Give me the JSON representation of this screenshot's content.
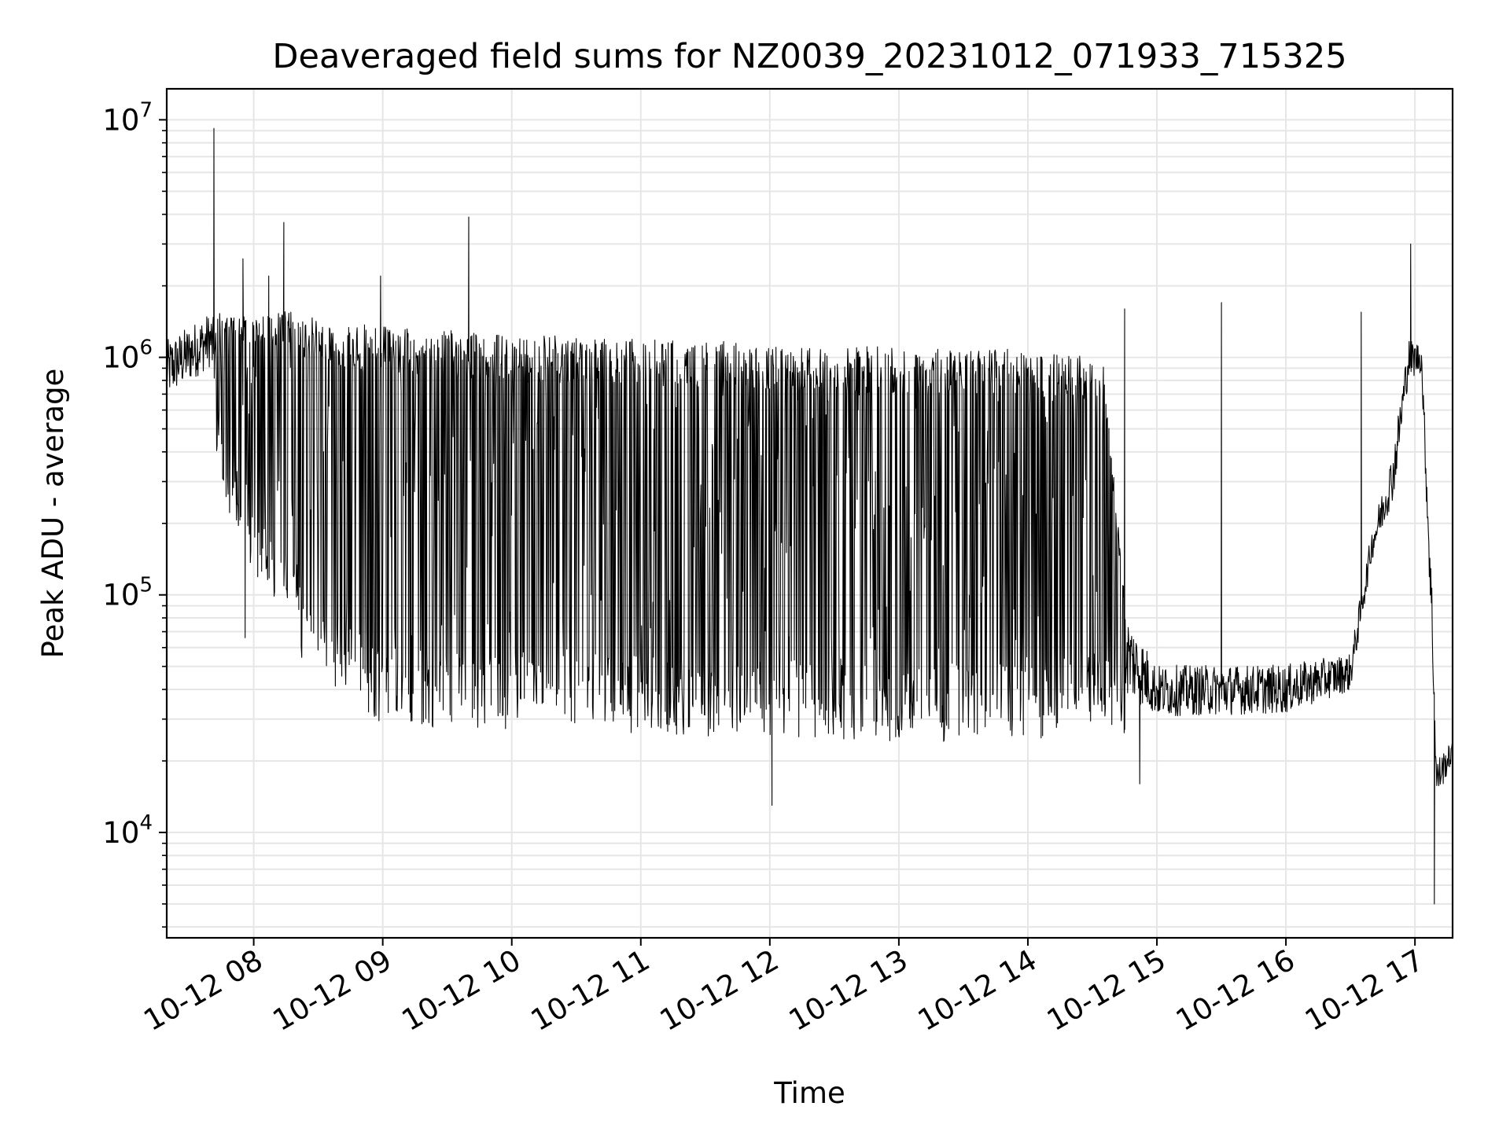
{
  "chart_data": {
    "type": "line",
    "title": "Deaveraged field sums for NZ0039_20231012_071933_715325",
    "xlabel": "Time",
    "ylabel": "Peak ADU - average",
    "yscale": "log",
    "ylim": [
      3600,
      13500000
    ],
    "xlim": [
      "2023-10-12 07:19:33",
      "2023-10-12 17:17:30"
    ],
    "grid": true,
    "line_color": "#000000",
    "x_ticks": [
      {
        "label": "10-12 08",
        "time": "2023-10-12 08:00:00"
      },
      {
        "label": "10-12 09",
        "time": "2023-10-12 09:00:00"
      },
      {
        "label": "10-12 10",
        "time": "2023-10-12 10:00:00"
      },
      {
        "label": "10-12 11",
        "time": "2023-10-12 11:00:00"
      },
      {
        "label": "10-12 12",
        "time": "2023-10-12 12:00:00"
      },
      {
        "label": "10-12 13",
        "time": "2023-10-12 13:00:00"
      },
      {
        "label": "10-12 14",
        "time": "2023-10-12 14:00:00"
      },
      {
        "label": "10-12 15",
        "time": "2023-10-12 15:00:00"
      },
      {
        "label": "10-12 16",
        "time": "2023-10-12 16:00:00"
      },
      {
        "label": "10-12 17",
        "time": "2023-10-12 17:00:00"
      }
    ],
    "y_ticks": [
      {
        "base": "10",
        "exp": "4",
        "value": 10000
      },
      {
        "base": "10",
        "exp": "5",
        "value": 100000
      },
      {
        "base": "10",
        "exp": "6",
        "value": 1000000
      },
      {
        "base": "10",
        "exp": "7",
        "value": 10000000
      }
    ],
    "series": [
      {
        "envelope": [
          {
            "time": "2023-10-12 07:19:33",
            "low": 500000,
            "high": 1300000
          },
          {
            "time": "2023-10-12 07:40:00",
            "low": 700000,
            "high": 1700000
          },
          {
            "time": "2023-10-12 07:45:00",
            "low": 250000,
            "high": 1500000
          },
          {
            "time": "2023-10-12 08:05:00",
            "low": 100000,
            "high": 1500000
          },
          {
            "time": "2023-10-12 08:20:00",
            "low": 90000,
            "high": 1600000
          },
          {
            "time": "2023-10-12 08:22:00",
            "low": 50000,
            "high": 1500000
          },
          {
            "time": "2023-10-12 08:40:00",
            "low": 40000,
            "high": 1400000
          },
          {
            "time": "2023-10-12 09:00:00",
            "low": 28000,
            "high": 1350000
          },
          {
            "time": "2023-10-12 10:00:00",
            "low": 27000,
            "high": 1250000
          },
          {
            "time": "2023-10-12 11:00:00",
            "low": 26000,
            "high": 1200000
          },
          {
            "time": "2023-10-12 12:00:00",
            "low": 25000,
            "high": 1150000
          },
          {
            "time": "2023-10-12 13:00:00",
            "low": 24000,
            "high": 1100000
          },
          {
            "time": "2023-10-12 14:00:00",
            "low": 24000,
            "high": 1080000
          },
          {
            "time": "2023-10-12 14:35:00",
            "low": 30000,
            "high": 1000000
          },
          {
            "time": "2023-10-12 14:45:00",
            "low": 25000,
            "high": 100000
          },
          {
            "time": "2023-10-12 15:00:00",
            "low": 24000,
            "high": 55000
          },
          {
            "time": "2023-10-12 16:00:00",
            "low": 25000,
            "high": 55000
          },
          {
            "time": "2023-10-12 16:30:00",
            "low": 33000,
            "high": 60000
          },
          {
            "time": "2023-10-12 16:40:00",
            "low": 120000,
            "high": 200000
          },
          {
            "time": "2023-10-12 16:50:00",
            "low": 200000,
            "high": 450000
          },
          {
            "time": "2023-10-12 16:57:00",
            "low": 650000,
            "high": 1300000
          },
          {
            "time": "2023-10-12 17:03:00",
            "low": 750000,
            "high": 1200000
          },
          {
            "time": "2023-10-12 17:08:00",
            "low": 40000,
            "high": 120000
          },
          {
            "time": "2023-10-12 17:10:00",
            "low": 11000,
            "high": 22000
          },
          {
            "time": "2023-10-12 17:17:30",
            "low": 18000,
            "high": 25000
          }
        ],
        "spikes": [
          {
            "time": "2023-10-12 07:41:30",
            "value": 9200000
          },
          {
            "time": "2023-10-12 07:55:00",
            "value": 2600000
          },
          {
            "time": "2023-10-12 08:07:00",
            "value": 2200000
          },
          {
            "time": "2023-10-12 08:14:00",
            "value": 3700000
          },
          {
            "time": "2023-10-12 08:59:00",
            "value": 2200000
          },
          {
            "time": "2023-10-12 09:40:00",
            "value": 3900000
          },
          {
            "time": "2023-10-12 14:45:00",
            "value": 1600000
          },
          {
            "time": "2023-10-12 15:30:00",
            "value": 1700000
          },
          {
            "time": "2023-10-12 16:35:00",
            "value": 1550000
          },
          {
            "time": "2023-10-12 16:58:00",
            "value": 3000000
          }
        ],
        "dips": [
          {
            "time": "2023-10-12 07:56:00",
            "value": 66000
          },
          {
            "time": "2023-10-12 12:01:00",
            "value": 13000
          },
          {
            "time": "2023-10-12 14:52:00",
            "value": 16000
          },
          {
            "time": "2023-10-12 17:09:00",
            "value": 5000
          }
        ]
      }
    ]
  }
}
